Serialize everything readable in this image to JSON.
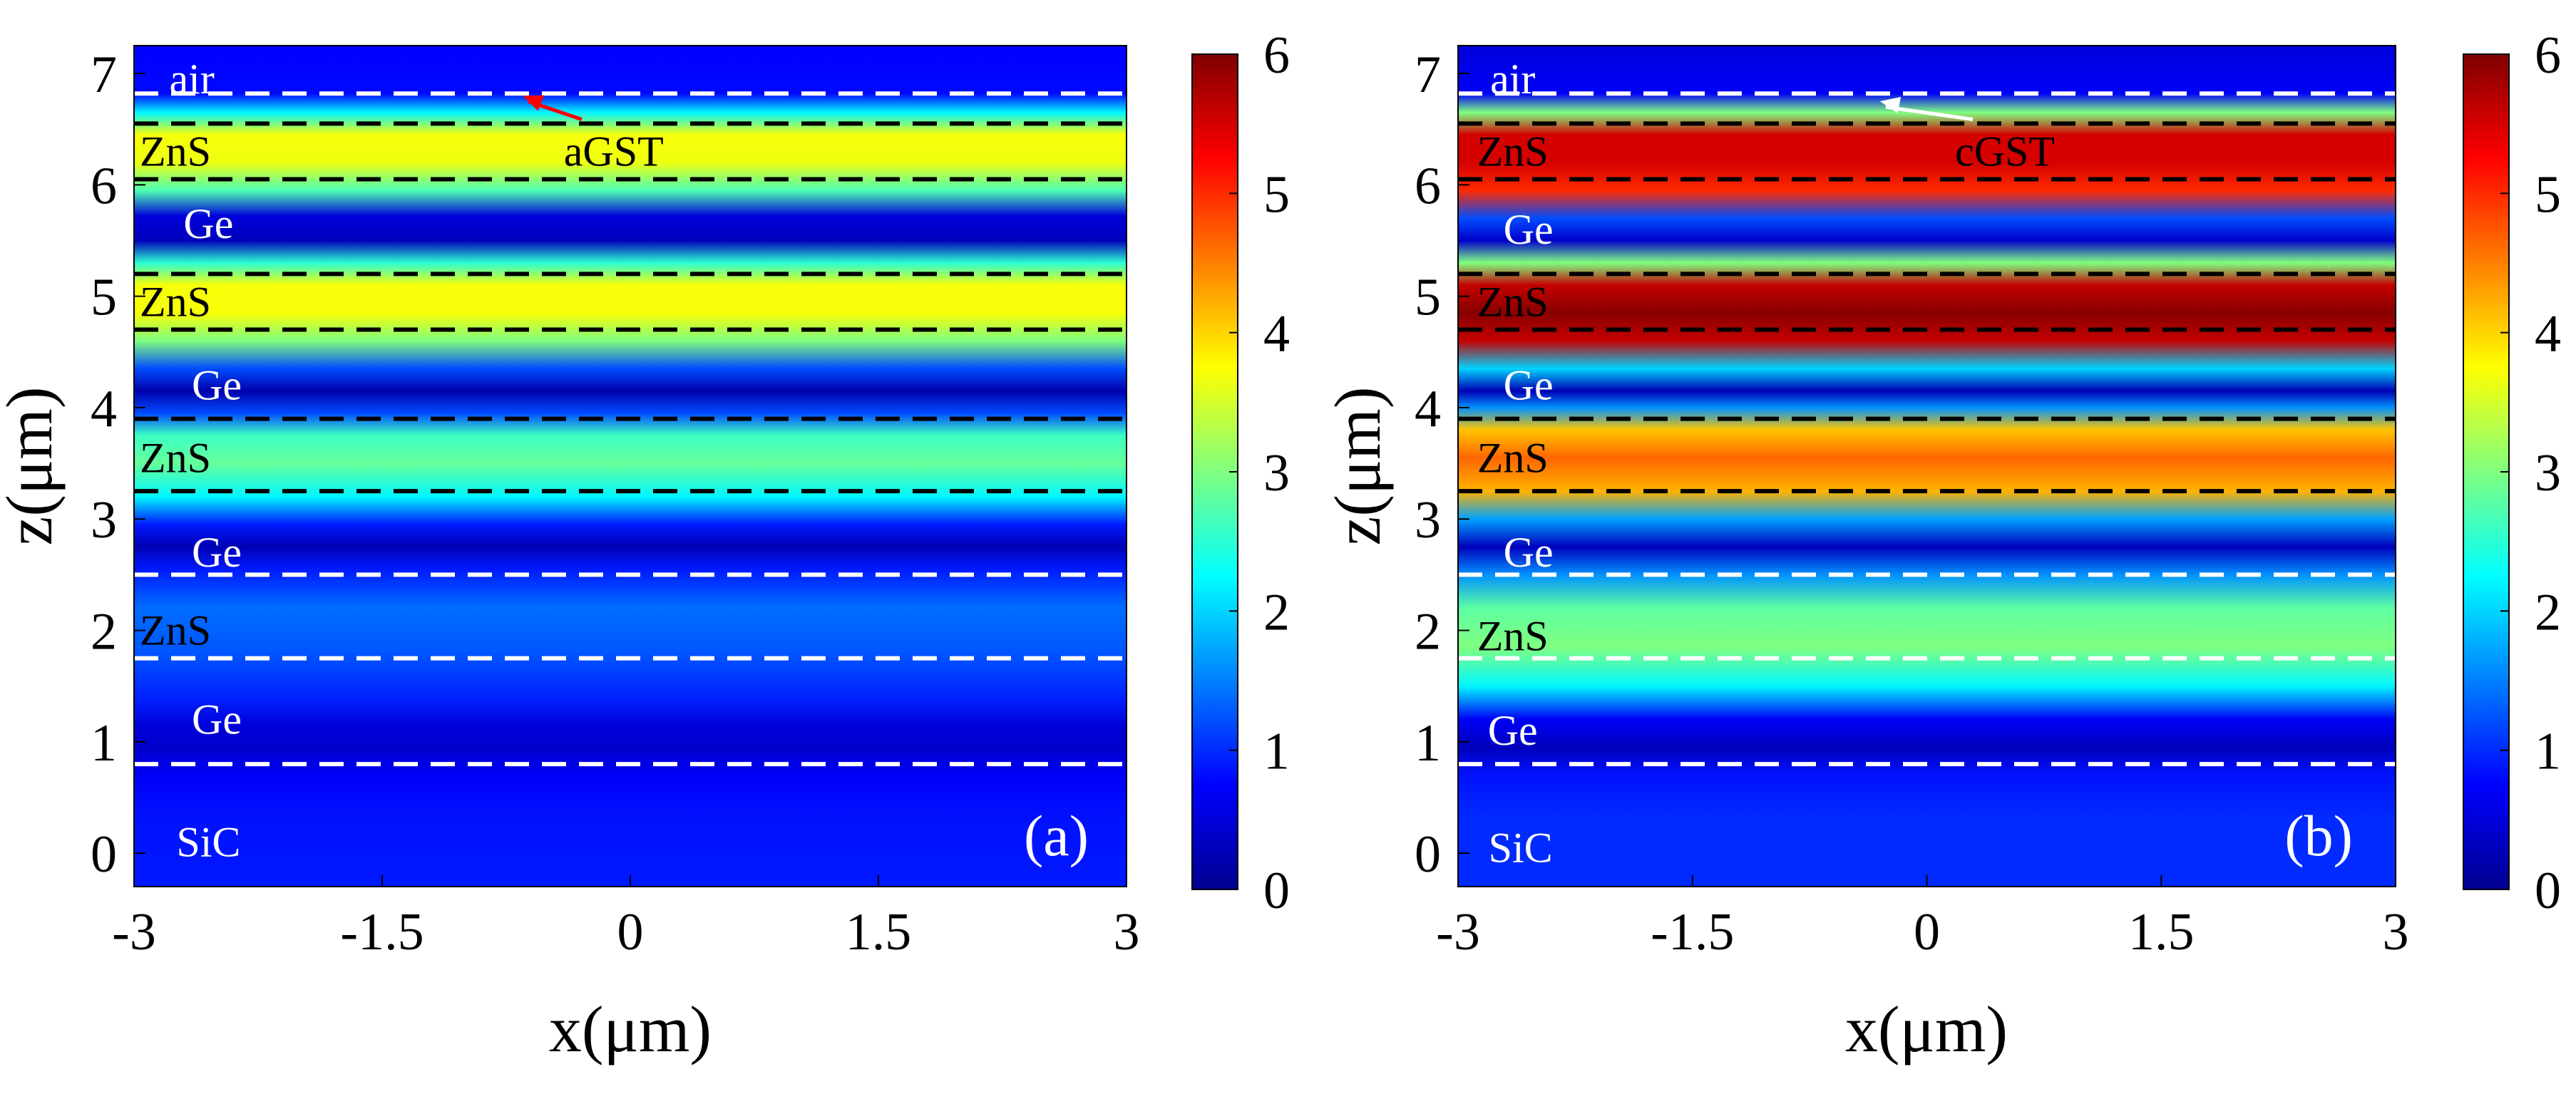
{
  "chart_data": [
    {
      "type": "heatmap",
      "panel_label": "(a)",
      "xlabel": "x(μm)",
      "ylabel": "z(μm)",
      "xlim": [
        -3,
        3
      ],
      "ylim": [
        -0.3,
        7.25
      ],
      "x_ticks": [
        "-3",
        "-1.5",
        "0",
        "1.5",
        "3"
      ],
      "y_ticks": [
        "0",
        "1",
        "2",
        "3",
        "4",
        "5",
        "6",
        "7"
      ],
      "colorbar": {
        "range": [
          0,
          6
        ],
        "ticks": [
          "0",
          "1",
          "2",
          "3",
          "4",
          "5",
          "6"
        ]
      },
      "layers": [
        {
          "name": "SiC",
          "z_range": [
            -0.3,
            0.8
          ]
        },
        {
          "name": "Ge",
          "z_range": [
            0.8,
            1.75
          ]
        },
        {
          "name": "ZnS",
          "z_range": [
            1.75,
            2.5
          ]
        },
        {
          "name": "Ge",
          "z_range": [
            2.5,
            3.25
          ]
        },
        {
          "name": "ZnS",
          "z_range": [
            3.25,
            3.9
          ]
        },
        {
          "name": "Ge",
          "z_range": [
            3.9,
            4.7
          ]
        },
        {
          "name": "ZnS",
          "z_range": [
            4.7,
            5.2
          ]
        },
        {
          "name": "Ge",
          "z_range": [
            5.2,
            6.05
          ]
        },
        {
          "name": "ZnS",
          "z_range": [
            6.05,
            6.55
          ]
        },
        {
          "name": "aGST",
          "z_range": [
            6.55,
            6.82
          ]
        },
        {
          "name": "air",
          "z_range": [
            6.82,
            7.25
          ]
        }
      ],
      "interface_lines": [
        {
          "z": 0.8,
          "color": "white"
        },
        {
          "z": 1.75,
          "color": "white"
        },
        {
          "z": 2.5,
          "color": "white"
        },
        {
          "z": 3.25,
          "color": "black"
        },
        {
          "z": 3.9,
          "color": "black"
        },
        {
          "z": 4.7,
          "color": "black"
        },
        {
          "z": 5.2,
          "color": "black"
        },
        {
          "z": 6.05,
          "color": "black"
        },
        {
          "z": 6.55,
          "color": "black"
        },
        {
          "z": 6.82,
          "color": "white"
        }
      ],
      "field_profile": [
        [
          -0.3,
          0.9
        ],
        [
          0.3,
          0.85
        ],
        [
          0.7,
          0.7
        ],
        [
          0.95,
          0.4
        ],
        [
          1.15,
          0.5
        ],
        [
          1.4,
          0.95
        ],
        [
          1.8,
          1.25
        ],
        [
          2.2,
          1.4
        ],
        [
          2.55,
          0.9
        ],
        [
          2.75,
          0.25
        ],
        [
          2.95,
          0.9
        ],
        [
          3.2,
          2.2
        ],
        [
          3.5,
          2.85
        ],
        [
          3.75,
          2.6
        ],
        [
          3.95,
          1.2
        ],
        [
          4.15,
          0.2
        ],
        [
          4.35,
          1.2
        ],
        [
          4.6,
          3.0
        ],
        [
          4.85,
          3.7
        ],
        [
          5.1,
          3.7
        ],
        [
          5.3,
          2.5
        ],
        [
          5.5,
          0.3
        ],
        [
          5.72,
          0.5
        ],
        [
          5.95,
          2.7
        ],
        [
          6.2,
          3.65
        ],
        [
          6.45,
          3.7
        ],
        [
          6.65,
          2.2
        ],
        [
          6.82,
          0.8
        ],
        [
          7.25,
          0.75
        ]
      ],
      "annotations": [
        {
          "text": "air",
          "x": -2.65,
          "z": 6.95,
          "color": "white"
        },
        {
          "text": "ZnS",
          "x": -2.75,
          "z": 6.3,
          "color": "black"
        },
        {
          "text": "Ge",
          "x": -2.55,
          "z": 5.65,
          "color": "white"
        },
        {
          "text": "ZnS",
          "x": -2.75,
          "z": 4.95,
          "color": "black"
        },
        {
          "text": "Ge",
          "x": -2.5,
          "z": 4.2,
          "color": "white"
        },
        {
          "text": "ZnS",
          "x": -2.75,
          "z": 3.55,
          "color": "black"
        },
        {
          "text": "Ge",
          "x": -2.5,
          "z": 2.7,
          "color": "white"
        },
        {
          "text": "ZnS",
          "x": -2.75,
          "z": 2.0,
          "color": "black"
        },
        {
          "text": "Ge",
          "x": -2.5,
          "z": 1.2,
          "color": "white"
        },
        {
          "text": "SiC",
          "x": -2.55,
          "z": 0.1,
          "color": "white"
        },
        {
          "text": "aGST",
          "x": -0.1,
          "z": 6.3,
          "color": "black",
          "arrow_to": [
            -0.65,
            6.8
          ],
          "arrow_color": "red"
        }
      ]
    },
    {
      "type": "heatmap",
      "panel_label": "(b)",
      "xlabel": "x(μm)",
      "ylabel": "z(μm)",
      "xlim": [
        -3,
        3
      ],
      "ylim": [
        -0.3,
        7.25
      ],
      "x_ticks": [
        "-3",
        "-1.5",
        "0",
        "1.5",
        "3"
      ],
      "y_ticks": [
        "0",
        "1",
        "2",
        "3",
        "4",
        "5",
        "6",
        "7"
      ],
      "colorbar": {
        "range": [
          0,
          6
        ],
        "ticks": [
          "0",
          "1",
          "2",
          "3",
          "4",
          "5",
          "6"
        ]
      },
      "layers": [
        {
          "name": "SiC",
          "z_range": [
            -0.3,
            0.8
          ]
        },
        {
          "name": "Ge",
          "z_range": [
            0.8,
            1.75
          ]
        },
        {
          "name": "ZnS",
          "z_range": [
            1.75,
            2.5
          ]
        },
        {
          "name": "Ge",
          "z_range": [
            2.5,
            3.25
          ]
        },
        {
          "name": "ZnS",
          "z_range": [
            3.25,
            3.9
          ]
        },
        {
          "name": "Ge",
          "z_range": [
            3.9,
            4.7
          ]
        },
        {
          "name": "ZnS",
          "z_range": [
            4.7,
            5.2
          ]
        },
        {
          "name": "Ge",
          "z_range": [
            5.2,
            6.05
          ]
        },
        {
          "name": "ZnS",
          "z_range": [
            6.05,
            6.55
          ]
        },
        {
          "name": "cGST",
          "z_range": [
            6.55,
            6.82
          ]
        },
        {
          "name": "air",
          "z_range": [
            6.82,
            7.25
          ]
        }
      ],
      "interface_lines": [
        {
          "z": 0.8,
          "color": "white"
        },
        {
          "z": 1.75,
          "color": "white"
        },
        {
          "z": 2.5,
          "color": "white"
        },
        {
          "z": 3.25,
          "color": "black"
        },
        {
          "z": 3.9,
          "color": "black"
        },
        {
          "z": 4.7,
          "color": "black"
        },
        {
          "z": 5.2,
          "color": "black"
        },
        {
          "z": 6.05,
          "color": "black"
        },
        {
          "z": 6.55,
          "color": "black"
        },
        {
          "z": 6.82,
          "color": "white"
        }
      ],
      "field_profile": [
        [
          -0.3,
          1.0
        ],
        [
          0.3,
          1.0
        ],
        [
          0.7,
          0.85
        ],
        [
          0.95,
          0.3
        ],
        [
          1.2,
          0.7
        ],
        [
          1.5,
          2.2
        ],
        [
          1.85,
          3.0
        ],
        [
          2.2,
          2.8
        ],
        [
          2.5,
          1.6
        ],
        [
          2.75,
          0.3
        ],
        [
          3.0,
          1.7
        ],
        [
          3.25,
          4.2
        ],
        [
          3.55,
          4.65
        ],
        [
          3.8,
          4.1
        ],
        [
          4.0,
          1.6
        ],
        [
          4.15,
          0.25
        ],
        [
          4.35,
          2.0
        ],
        [
          4.6,
          5.6
        ],
        [
          4.85,
          5.95
        ],
        [
          5.1,
          5.6
        ],
        [
          5.3,
          3.0
        ],
        [
          5.5,
          0.4
        ],
        [
          5.7,
          1.2
        ],
        [
          5.95,
          5.0
        ],
        [
          6.2,
          5.5
        ],
        [
          6.45,
          5.5
        ],
        [
          6.65,
          3.0
        ],
        [
          6.82,
          0.7
        ],
        [
          7.25,
          0.5
        ]
      ],
      "annotations": [
        {
          "text": "air",
          "x": -2.65,
          "z": 6.95,
          "color": "white"
        },
        {
          "text": "ZnS",
          "x": -2.65,
          "z": 6.3,
          "color": "black"
        },
        {
          "text": "Ge",
          "x": -2.55,
          "z": 5.6,
          "color": "white"
        },
        {
          "text": "ZnS",
          "x": -2.65,
          "z": 4.95,
          "color": "black"
        },
        {
          "text": "Ge",
          "x": -2.55,
          "z": 4.2,
          "color": "white"
        },
        {
          "text": "ZnS",
          "x": -2.65,
          "z": 3.55,
          "color": "black"
        },
        {
          "text": "Ge",
          "x": -2.55,
          "z": 2.7,
          "color": "white"
        },
        {
          "text": "ZnS",
          "x": -2.65,
          "z": 1.95,
          "color": "black"
        },
        {
          "text": "Ge",
          "x": -2.65,
          "z": 1.1,
          "color": "white"
        },
        {
          "text": "SiC",
          "x": -2.6,
          "z": 0.05,
          "color": "white"
        },
        {
          "text": "cGST",
          "x": 0.5,
          "z": 6.3,
          "color": "black",
          "arrow_to": [
            -0.3,
            6.75
          ],
          "arrow_color": "white"
        }
      ]
    }
  ]
}
